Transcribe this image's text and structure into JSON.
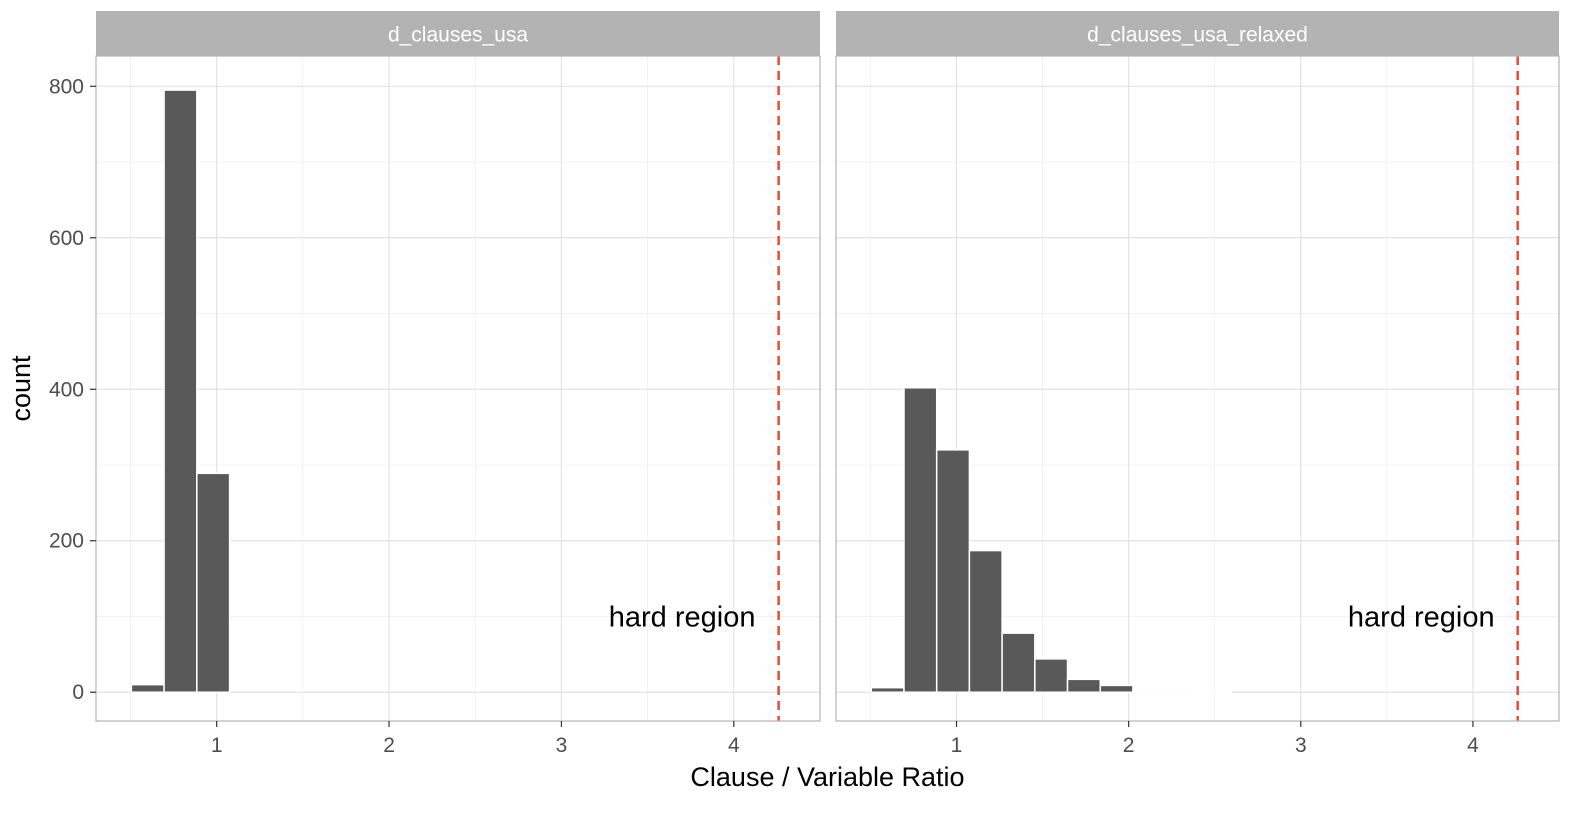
{
  "chart_data": {
    "type": "bar",
    "subtype": "faceted-histogram",
    "xlabel": "Clause / Variable Ratio",
    "ylabel": "count",
    "xlim": [
      0.3,
      4.5
    ],
    "ylim": [
      -38,
      840
    ],
    "x_ticks": [
      1,
      2,
      3,
      4
    ],
    "y_ticks": [
      0,
      200,
      400,
      600,
      800
    ],
    "grid": true,
    "bin_width": 0.19,
    "threshold_line": {
      "x": 4.26,
      "style": "dashed",
      "color": "#e64b35"
    },
    "annotation": {
      "text": "hard region",
      "x": 3.7,
      "y": 100
    },
    "colors": {
      "bar": "#595959",
      "strip": "#b3b3b3",
      "strip_text": "#ffffff",
      "grid": "#ebebeb",
      "panel_border": "#b3b3b3",
      "tick_label": "#4d4d4d"
    },
    "facets": [
      {
        "name": "d_clauses_usa",
        "bars": [
          {
            "x": 0.6,
            "count": 10
          },
          {
            "x": 0.79,
            "count": 795
          },
          {
            "x": 0.98,
            "count": 289
          }
        ]
      },
      {
        "name": "d_clauses_usa_relaxed",
        "bars": [
          {
            "x": 0.6,
            "count": 6
          },
          {
            "x": 0.79,
            "count": 402
          },
          {
            "x": 0.98,
            "count": 320
          },
          {
            "x": 1.17,
            "count": 187
          },
          {
            "x": 1.36,
            "count": 78
          },
          {
            "x": 1.55,
            "count": 44
          },
          {
            "x": 1.74,
            "count": 17
          },
          {
            "x": 1.93,
            "count": 9
          },
          {
            "x": 2.12,
            "count": 2
          },
          {
            "x": 2.31,
            "count": 2
          },
          {
            "x": 2.5,
            "count": 1
          }
        ]
      }
    ]
  }
}
